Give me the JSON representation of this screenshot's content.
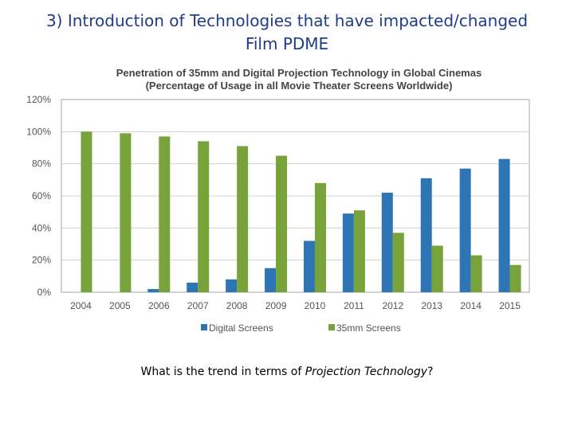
{
  "slide": {
    "title_line1": "3) Introduction of Technologies that have impacted/changed",
    "title_line2": "Film PDME",
    "question_prefix": "What is the trend in terms of ",
    "question_emphasis": "Projection Technology",
    "question_suffix": "?"
  },
  "chart_data": {
    "type": "bar",
    "title": "Penetration of 35mm and Digital Projection Technology in Global Cinemas",
    "subtitle": "(Percentage of Usage in all Movie Theater Screens Worldwide)",
    "categories": [
      "2004",
      "2005",
      "2006",
      "2007",
      "2008",
      "2009",
      "2010",
      "2011",
      "2012",
      "2013",
      "2014",
      "2015"
    ],
    "series": [
      {
        "name": "Digital Screens",
        "color": "#2e75b6",
        "values": [
          0,
          0,
          2,
          6,
          8,
          15,
          32,
          49,
          62,
          71,
          77,
          83
        ]
      },
      {
        "name": "35mm Screens",
        "color": "#77a33a",
        "values": [
          100,
          99,
          97,
          94,
          91,
          85,
          68,
          51,
          37,
          29,
          23,
          17
        ]
      }
    ],
    "yticks": [
      "0%",
      "20%",
      "40%",
      "60%",
      "80%",
      "100%",
      "120%"
    ],
    "ylim": [
      0,
      120
    ],
    "grid": true,
    "legend": "bottom",
    "xlabel": "",
    "ylabel": ""
  }
}
